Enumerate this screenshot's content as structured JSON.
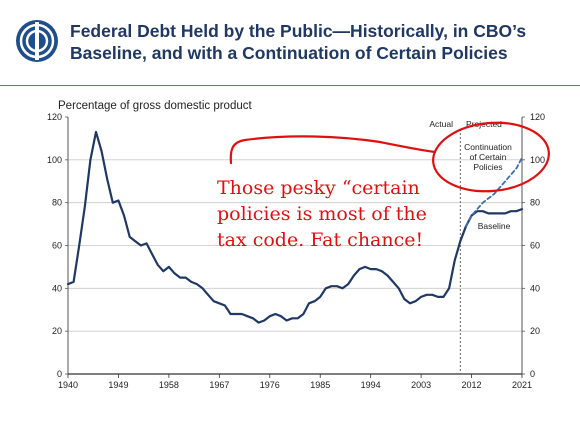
{
  "header": {
    "title_line1": "Federal Debt Held by the Public—Historically, in CBO’s",
    "title_line2": "Baseline, and with a Continuation of Certain Policies"
  },
  "colors": {
    "title": "#1f3864",
    "series": "#1f3864",
    "rule": "#e04a2a",
    "annotation": "#e01010"
  },
  "chart_data": {
    "type": "line",
    "ylabel": "Percentage of gross domestic product",
    "xlim": [
      1940,
      2021
    ],
    "ylim": [
      0,
      120
    ],
    "x_ticks": [
      1940,
      1949,
      1958,
      1967,
      1976,
      1985,
      1994,
      2003,
      2012,
      2021
    ],
    "y_ticks": [
      0,
      20,
      40,
      60,
      80,
      100,
      120
    ],
    "divider_year": 2010,
    "divider_labels": {
      "left": "Actual",
      "right": "Projected"
    },
    "series": [
      {
        "name": "Baseline",
        "style": "solid",
        "x": [
          1940,
          1941,
          1942,
          1943,
          1944,
          1945,
          1946,
          1947,
          1948,
          1949,
          1950,
          1951,
          1952,
          1953,
          1954,
          1955,
          1956,
          1957,
          1958,
          1959,
          1960,
          1961,
          1962,
          1963,
          1964,
          1965,
          1966,
          1967,
          1968,
          1969,
          1970,
          1971,
          1972,
          1973,
          1974,
          1975,
          1976,
          1977,
          1978,
          1979,
          1980,
          1981,
          1982,
          1983,
          1984,
          1985,
          1986,
          1987,
          1988,
          1989,
          1990,
          1991,
          1992,
          1993,
          1994,
          1995,
          1996,
          1997,
          1998,
          1999,
          2000,
          2001,
          2002,
          2003,
          2004,
          2005,
          2006,
          2007,
          2008,
          2009,
          2010,
          2011,
          2012,
          2013,
          2014,
          2015,
          2016,
          2017,
          2018,
          2019,
          2020,
          2021
        ],
        "values": [
          42,
          43,
          60,
          78,
          100,
          113,
          104,
          91,
          80,
          81,
          74,
          64,
          62,
          60,
          61,
          56,
          51,
          48,
          50,
          47,
          45,
          45,
          43,
          42,
          40,
          37,
          34,
          33,
          32,
          28,
          28,
          28,
          27,
          26,
          24,
          25,
          27,
          28,
          27,
          25,
          26,
          26,
          28,
          33,
          34,
          36,
          40,
          41,
          41,
          40,
          42,
          46,
          49,
          50,
          49,
          49,
          48,
          46,
          43,
          40,
          35,
          33,
          34,
          36,
          37,
          37,
          36,
          36,
          40,
          53,
          62,
          69,
          74,
          76,
          76,
          75,
          75,
          75,
          75,
          76,
          76,
          77
        ]
      },
      {
        "name": "Continuation of Certain Policies",
        "style": "dashed",
        "x": [
          2011,
          2012,
          2013,
          2014,
          2015,
          2016,
          2017,
          2018,
          2019,
          2020,
          2021
        ],
        "values": [
          69,
          74,
          77,
          80,
          82,
          84,
          87,
          90,
          93,
          96,
          101
        ]
      }
    ],
    "series_labels": {
      "baseline": "Baseline",
      "continuation_1": "Continuation",
      "continuation_2": "of Certain",
      "continuation_3": "Policies"
    }
  },
  "annotation": {
    "line1": "Those pesky “certain",
    "line2": "policies is most of the",
    "line3": "tax code. Fat chance!"
  }
}
